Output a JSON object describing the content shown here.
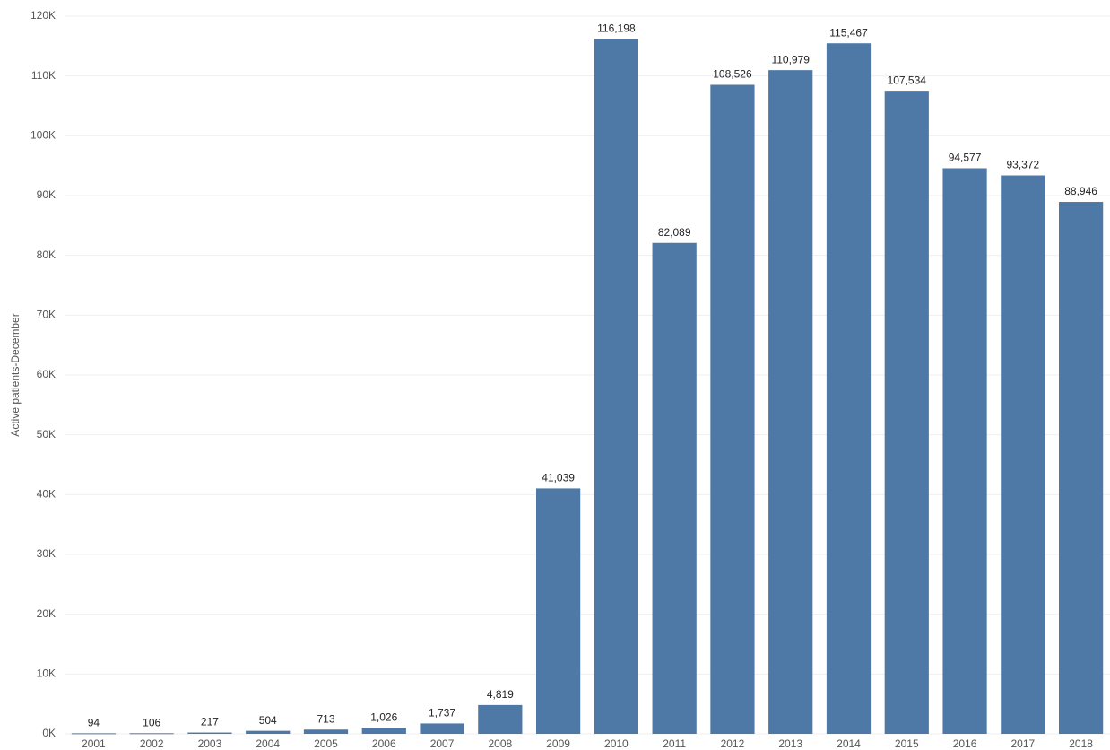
{
  "chart_data": {
    "type": "bar",
    "y_label": "Active patients-December",
    "categories": [
      "2001",
      "2002",
      "2003",
      "2004",
      "2005",
      "2006",
      "2007",
      "2008",
      "2009",
      "2010",
      "2011",
      "2012",
      "2013",
      "2014",
      "2015",
      "2016",
      "2017",
      "2018"
    ],
    "values": [
      94,
      106,
      217,
      504,
      713,
      1026,
      1737,
      4819,
      41039,
      116198,
      82089,
      108526,
      110979,
      115467,
      107534,
      94577,
      93372,
      88946
    ],
    "value_labels": [
      "94",
      "106",
      "217",
      "504",
      "713",
      "1,026",
      "1,737",
      "4,819",
      "41,039",
      "116,198",
      "82,089",
      "108,526",
      "110,979",
      "115,467",
      "107,534",
      "94,577",
      "93,372",
      "88,946"
    ],
    "color": "#4e79a7",
    "ylim": [
      0,
      120000
    ],
    "yticks": [
      {
        "value": 0,
        "label": "0K"
      },
      {
        "value": 10000,
        "label": "10K"
      },
      {
        "value": 20000,
        "label": "20K"
      },
      {
        "value": 30000,
        "label": "30K"
      },
      {
        "value": 40000,
        "label": "40K"
      },
      {
        "value": 50000,
        "label": "50K"
      },
      {
        "value": 60000,
        "label": "60K"
      },
      {
        "value": 70000,
        "label": "70K"
      },
      {
        "value": 80000,
        "label": "80K"
      },
      {
        "value": 90000,
        "label": "90K"
      },
      {
        "value": 100000,
        "label": "100K"
      },
      {
        "value": 110000,
        "label": "110K"
      },
      {
        "value": 120000,
        "label": "120K"
      }
    ],
    "grid": true
  }
}
